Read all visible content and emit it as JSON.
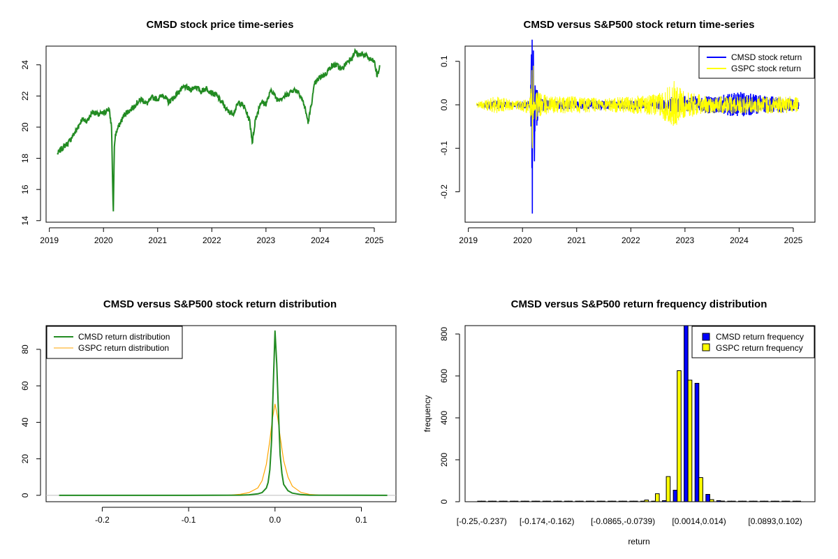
{
  "chart_data": [
    {
      "type": "line",
      "title": "CMSD stock price time-series",
      "xlabel": "",
      "ylabel": "",
      "xlim": [
        2018.94,
        2025.4
      ],
      "ylim": [
        13.9,
        25.2
      ],
      "x_ticks": [
        2019,
        2020,
        2021,
        2022,
        2023,
        2024,
        2025
      ],
      "x_tick_labels": [
        "2019",
        "2020",
        "2021",
        "2022",
        "2023",
        "2024",
        "2025"
      ],
      "y_ticks": [
        14,
        16,
        18,
        20,
        22,
        24
      ],
      "y_tick_labels": [
        "14",
        "16",
        "18",
        "20",
        "22",
        "24"
      ],
      "grid": false,
      "colors": {
        "line": "#228B22"
      },
      "series": [
        {
          "x": [
            2019.15,
            2019.25,
            2019.35,
            2019.5,
            2019.6,
            2019.7,
            2019.8,
            2019.9,
            2020.0,
            2020.1,
            2020.15,
            2020.18,
            2020.2,
            2020.22,
            2020.25,
            2020.3,
            2020.4,
            2020.5,
            2020.6,
            2020.7,
            2020.8,
            2020.9,
            2021.0,
            2021.1,
            2021.2,
            2021.3,
            2021.4,
            2021.5,
            2021.6,
            2021.7,
            2021.8,
            2021.9,
            2022.0,
            2022.1,
            2022.2,
            2022.3,
            2022.4,
            2022.5,
            2022.6,
            2022.7,
            2022.75,
            2022.8,
            2022.85,
            2022.9,
            2023.0,
            2023.1,
            2023.2,
            2023.3,
            2023.4,
            2023.5,
            2023.6,
            2023.7,
            2023.78,
            2023.82,
            2023.9,
            2024.0,
            2024.1,
            2024.2,
            2024.3,
            2024.4,
            2024.5,
            2024.6,
            2024.65,
            2024.7,
            2024.8,
            2024.9,
            2025.0,
            2025.05,
            2025.1
          ],
          "y": [
            18.3,
            18.7,
            19.0,
            19.8,
            20.5,
            20.4,
            21.0,
            20.8,
            20.9,
            21.2,
            20.0,
            14.3,
            18.7,
            19.5,
            19.8,
            20.2,
            20.9,
            21.1,
            21.5,
            21.8,
            21.5,
            21.9,
            21.8,
            22.1,
            21.6,
            21.9,
            22.3,
            22.6,
            22.4,
            22.6,
            22.3,
            22.5,
            22.2,
            22.0,
            21.5,
            21.0,
            20.9,
            21.6,
            21.3,
            20.4,
            19.0,
            20.4,
            21.0,
            21.6,
            21.5,
            22.4,
            21.8,
            21.9,
            22.1,
            22.4,
            22.3,
            21.5,
            20.3,
            21.1,
            22.8,
            23.2,
            23.4,
            23.9,
            24.0,
            23.7,
            24.2,
            24.5,
            24.9,
            24.6,
            24.7,
            24.4,
            24.2,
            23.3,
            23.8
          ]
        }
      ]
    },
    {
      "type": "line",
      "title": "CMSD versus S&P500 stock return time-series",
      "xlabel": "",
      "ylabel": "",
      "xlim": [
        2018.94,
        2025.4
      ],
      "ylim": [
        -0.27,
        0.135
      ],
      "x_ticks": [
        2019,
        2020,
        2021,
        2022,
        2023,
        2024,
        2025
      ],
      "x_tick_labels": [
        "2019",
        "2020",
        "2021",
        "2022",
        "2023",
        "2024",
        "2025"
      ],
      "y_ticks": [
        -0.2,
        -0.1,
        0.0,
        0.1
      ],
      "y_tick_labels": [
        "-0.2",
        "-0.1",
        "0.0",
        "0.1"
      ],
      "grid": false,
      "legend": {
        "position": "top-right",
        "entries": [
          "CMSD stock return",
          "GSPC stock return"
        ]
      },
      "colors": {
        "cmsd": "#0000FF",
        "gspc": "#FFFF00"
      },
      "series": [
        {
          "name": "CMSD stock return",
          "x": [
            2019.15,
            2019.5,
            2019.9,
            2020.1,
            2020.15,
            2020.18,
            2020.2,
            2020.22,
            2020.25,
            2020.3,
            2020.5,
            2021.0,
            2021.5,
            2022.0,
            2022.5,
            2022.8,
            2023.0,
            2023.5,
            2023.8,
            2024.0,
            2024.5,
            2025.0,
            2025.1
          ],
          "y": [
            0.0,
            0.01,
            0.005,
            0.01,
            -0.02,
            -0.25,
            0.125,
            -0.13,
            0.06,
            0.02,
            0.01,
            0.01,
            0.01,
            0.01,
            0.01,
            0.02,
            0.02,
            0.02,
            0.025,
            0.03,
            0.02,
            0.015,
            0.01
          ]
        },
        {
          "name": "GSPC stock return",
          "x": [
            2019.15,
            2019.5,
            2019.9,
            2020.1,
            2020.15,
            2020.18,
            2020.2,
            2020.22,
            2020.25,
            2020.3,
            2020.5,
            2021.0,
            2021.5,
            2022.0,
            2022.5,
            2022.8,
            2023.0,
            2023.5,
            2023.8,
            2024.0,
            2024.5,
            2025.0,
            2025.1
          ],
          "y": [
            0.005,
            0.02,
            0.01,
            0.02,
            -0.04,
            -0.1,
            0.09,
            -0.05,
            0.04,
            0.03,
            0.02,
            0.02,
            0.015,
            0.02,
            0.025,
            0.055,
            0.03,
            0.02,
            0.02,
            0.02,
            0.02,
            0.02,
            0.015
          ]
        }
      ]
    },
    {
      "type": "line",
      "title": "CMSD versus S&P500 stock return distribution",
      "xlabel": "",
      "ylabel": "",
      "xlim": [
        -0.265,
        0.14
      ],
      "ylim": [
        -3.5,
        93
      ],
      "x_ticks": [
        -0.2,
        -0.1,
        0.0,
        0.1
      ],
      "x_tick_labels": [
        "-0.2",
        "-0.1",
        "0.0",
        "0.1"
      ],
      "y_ticks": [
        0,
        20,
        40,
        60,
        80
      ],
      "y_tick_labels": [
        "0",
        "20",
        "40",
        "60",
        "80"
      ],
      "grid": false,
      "legend": {
        "position": "top-left",
        "entries": [
          "CMSD return distribution",
          "GSPC return distribution"
        ]
      },
      "colors": {
        "cmsd": "#228B22",
        "gspc": "#FFA500",
        "zero": "#BEBEBE"
      },
      "series": [
        {
          "name": "CMSD return distribution",
          "x": [
            -0.25,
            -0.1,
            -0.04,
            -0.03,
            -0.02,
            -0.015,
            -0.01,
            -0.008,
            -0.006,
            -0.004,
            -0.002,
            0.0,
            0.002,
            0.004,
            0.006,
            0.008,
            0.01,
            0.015,
            0.02,
            0.03,
            0.04,
            0.13
          ],
          "y": [
            0,
            0,
            0.1,
            0.3,
            0.8,
            1.5,
            4,
            7,
            14,
            30,
            60,
            90,
            72,
            45,
            22,
            12,
            6,
            2.5,
            1.2,
            0.4,
            0.1,
            0
          ]
        },
        {
          "name": "GSPC return distribution",
          "x": [
            -0.06,
            -0.05,
            -0.04,
            -0.03,
            -0.02,
            -0.015,
            -0.01,
            -0.006,
            -0.003,
            0.0,
            0.003,
            0.006,
            0.01,
            0.015,
            0.02,
            0.03,
            0.04,
            0.05,
            0.09
          ],
          "y": [
            0,
            0.2,
            0.6,
            1.5,
            4,
            8,
            17,
            30,
            42,
            50,
            43,
            32,
            19,
            10,
            5,
            1.6,
            0.5,
            0.2,
            0
          ]
        }
      ]
    },
    {
      "type": "bar",
      "title": "CMSD versus S&P500 return frequency distribution",
      "xlabel": "return",
      "ylabel": "frequency",
      "ylim": [
        0,
        840
      ],
      "y_ticks": [
        0,
        200,
        400,
        600,
        800
      ],
      "y_tick_labels": [
        "0",
        "200",
        "400",
        "600",
        "800"
      ],
      "x_tick_labels": [
        "[-0.25,-0.237)",
        "[-0.174,-0.162)",
        "[-0.0865,-0.0739)",
        "[0.0014,0.014)",
        "[0.0893,0.102)"
      ],
      "x_tick_positions": [
        0,
        6,
        13,
        20,
        27
      ],
      "bin_count": 30,
      "grid": false,
      "legend": {
        "position": "top-right",
        "entries": [
          "CMSD return frequency",
          "GSPC return frequency"
        ]
      },
      "colors": {
        "cmsd": "#0000FF",
        "gspc": "#FFFF00"
      },
      "series": [
        {
          "name": "CMSD return frequency",
          "values": [
            1,
            0,
            0,
            0,
            0,
            0,
            0,
            0,
            0,
            0,
            0,
            0,
            0,
            0,
            0,
            1,
            2,
            5,
            55,
            870,
            565,
            35,
            5,
            2,
            1,
            1,
            0,
            0,
            0,
            0
          ]
        },
        {
          "name": "GSPC return frequency",
          "values": [
            0,
            0,
            0,
            0,
            0,
            0,
            0,
            0,
            0,
            0,
            0,
            0,
            0,
            1,
            2,
            8,
            38,
            120,
            625,
            580,
            115,
            10,
            3,
            1,
            0,
            0,
            0,
            0,
            0,
            0
          ]
        }
      ]
    }
  ]
}
